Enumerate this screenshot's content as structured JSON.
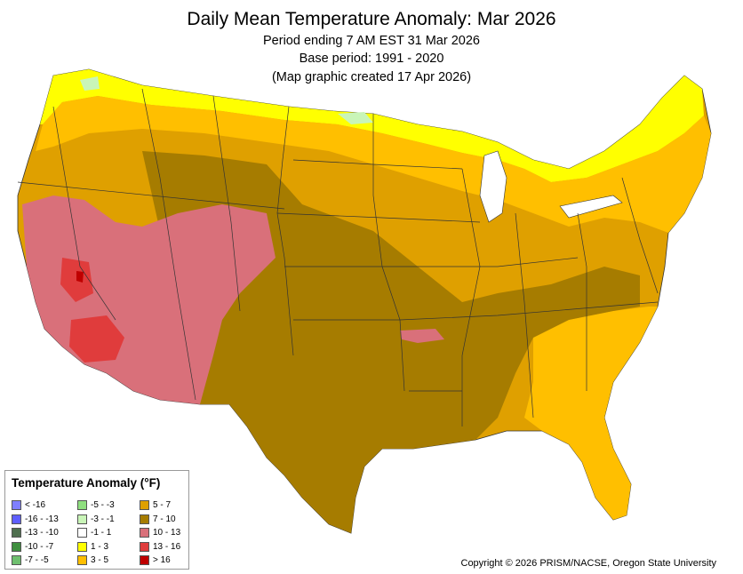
{
  "header": {
    "title": "Daily Mean Temperature Anomaly: Mar 2026",
    "subtitle_period": "Period ending 7 AM EST 31 Mar 2026",
    "subtitle_base": "Base period: 1991 - 2020",
    "subtitle_created": "(Map graphic created 17 Apr 2026)"
  },
  "legend": {
    "title": "Temperature Anomaly (°F)",
    "items": [
      {
        "label": "< -16",
        "color": "#7f7fff"
      },
      {
        "label": "-16 - -13",
        "color": "#5f5fff"
      },
      {
        "label": "-13 - -10",
        "color": "#4f6f4f"
      },
      {
        "label": "-10 - -7",
        "color": "#3f8f3f"
      },
      {
        "label": "-7 - -5",
        "color": "#6fbf6f"
      },
      {
        "label": "-5 - -3",
        "color": "#8fdf7f"
      },
      {
        "label": "-3 - -1",
        "color": "#c9f5b8"
      },
      {
        "label": "-1 - 1",
        "color": "#ffffff"
      },
      {
        "label": "1 - 3",
        "color": "#ffff00"
      },
      {
        "label": "3 - 5",
        "color": "#ffbf00"
      },
      {
        "label": "5 - 7",
        "color": "#dfa000"
      },
      {
        "label": "7 - 10",
        "color": "#a67c00"
      },
      {
        "label": "10 - 13",
        "color": "#d9707a"
      },
      {
        "label": "13 - 16",
        "color": "#e03c3c"
      },
      {
        "label": "> 16",
        "color": "#bf0000"
      }
    ]
  },
  "footer": {
    "copyright": "Copyright © 2026 PRISM/NACSE, Oregon State University"
  }
}
